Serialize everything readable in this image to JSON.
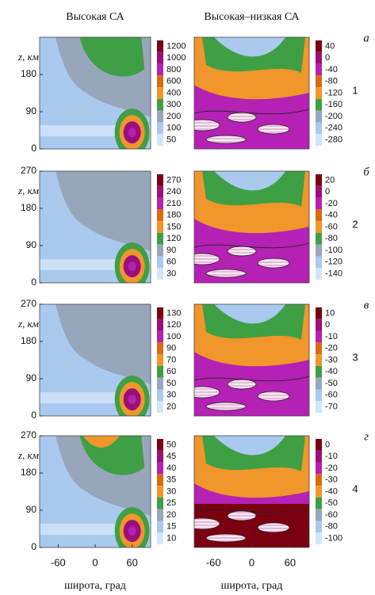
{
  "chart_data": [
    {
      "type": "contour",
      "title": "Высокая СА",
      "y_label": "z, км",
      "xlim": [
        -90,
        90
      ],
      "ylim": [
        0,
        270
      ],
      "yticks": [
        0,
        90,
        180
      ],
      "colorbar_ticks": [
        1200,
        1000,
        800,
        600,
        400,
        300,
        200,
        100,
        50
      ]
    },
    {
      "type": "contour",
      "title": "Высокая–низкая СА",
      "panel_letter": "а",
      "panel_number": "1",
      "xlim": [
        -90,
        90
      ],
      "ylim": [
        0,
        270
      ],
      "colorbar_ticks": [
        40,
        0,
        -40,
        -80,
        -120,
        -160,
        -200,
        -240,
        -280
      ]
    },
    {
      "type": "contour",
      "y_label": "z, км",
      "xlim": [
        -90,
        90
      ],
      "ylim": [
        0,
        270
      ],
      "yticks": [
        0,
        90,
        180,
        270
      ],
      "colorbar_ticks": [
        270,
        240,
        210,
        180,
        150,
        120,
        90,
        60,
        30
      ]
    },
    {
      "type": "contour",
      "panel_letter": "б",
      "panel_number": "2",
      "xlim": [
        -90,
        90
      ],
      "ylim": [
        0,
        270
      ],
      "colorbar_ticks": [
        20,
        0,
        -20,
        -40,
        -60,
        -80,
        -100,
        -120,
        -140
      ]
    },
    {
      "type": "contour",
      "y_label": "z, км",
      "xlim": [
        -90,
        90
      ],
      "ylim": [
        0,
        270
      ],
      "yticks": [
        0,
        90,
        180,
        270
      ],
      "colorbar_ticks": [
        130,
        120,
        100,
        90,
        70,
        60,
        50,
        30,
        20
      ]
    },
    {
      "type": "contour",
      "panel_letter": "в",
      "panel_number": "3",
      "xlim": [
        -90,
        90
      ],
      "ylim": [
        0,
        270
      ],
      "colorbar_ticks": [
        10,
        0,
        -10,
        -20,
        -30,
        -40,
        -50,
        -60,
        -70
      ]
    },
    {
      "type": "contour",
      "y_label": "z, км",
      "x_label": "широта, град",
      "xlim": [
        -90,
        90
      ],
      "ylim": [
        0,
        270
      ],
      "xticks": [
        -60,
        0,
        60
      ],
      "yticks": [
        0,
        90,
        180,
        270
      ],
      "colorbar_ticks": [
        50,
        45,
        40,
        35,
        30,
        25,
        20,
        15,
        10
      ]
    },
    {
      "type": "contour",
      "panel_letter": "г",
      "panel_number": "4",
      "x_label": "широта, град",
      "xlim": [
        -90,
        90
      ],
      "ylim": [
        0,
        270
      ],
      "xticks": [
        -60,
        0,
        60
      ],
      "colorbar_ticks": [
        0,
        -10,
        -20,
        -30,
        -40,
        -50,
        -60,
        -80,
        -100
      ]
    }
  ]
}
